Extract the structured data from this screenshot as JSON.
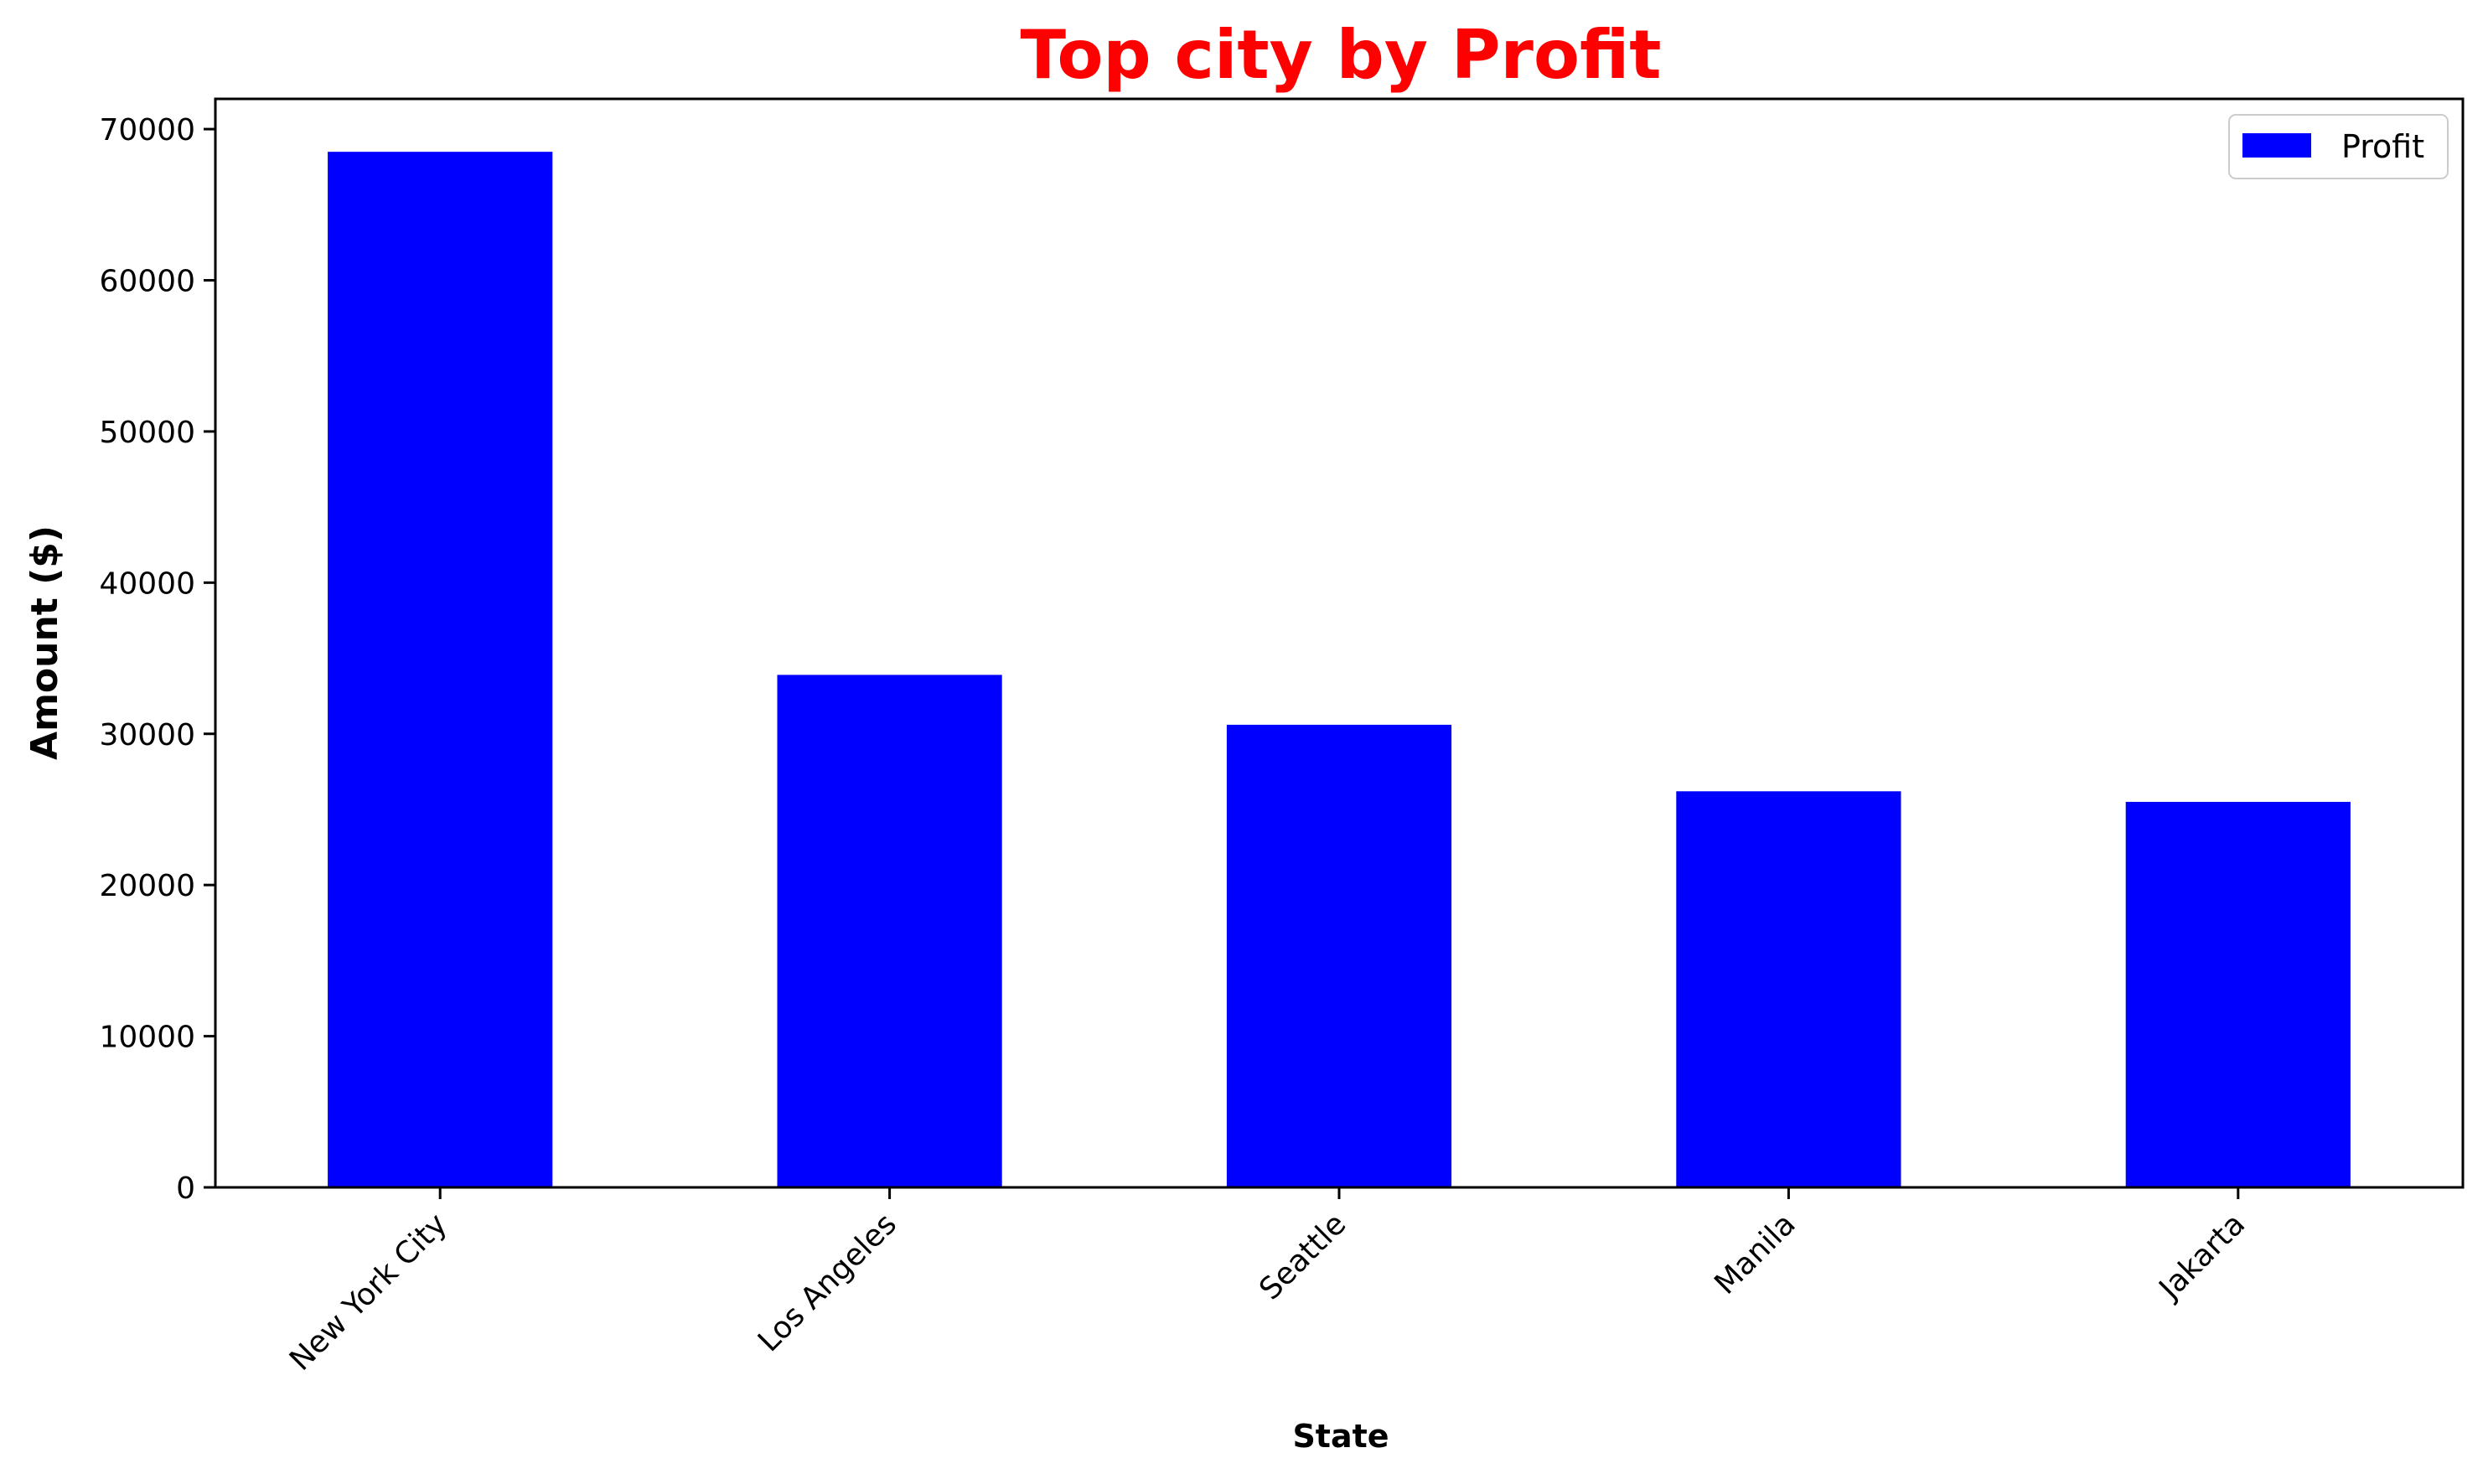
{
  "chart_data": {
    "type": "bar",
    "title": "Top city by Profit",
    "xlabel": "State",
    "ylabel": "Amount ($)",
    "categories": [
      "New York City",
      "Los Angeles",
      "Seattle",
      "Manila",
      "Jakarta"
    ],
    "series": [
      {
        "name": "Profit",
        "values": [
          68500,
          33900,
          30600,
          26200,
          25500
        ]
      }
    ],
    "ylim": [
      0,
      72000
    ],
    "yticks": [
      0,
      10000,
      20000,
      30000,
      40000,
      50000,
      60000,
      70000
    ],
    "ytick_labels": [
      "0",
      "10000",
      "20000",
      "30000",
      "40000",
      "50000",
      "60000",
      "70000"
    ],
    "grid": false,
    "legend_position": "top-right",
    "colors": {
      "bar": "#0000ff",
      "title": "#ff0000",
      "axis": "#000000"
    }
  }
}
